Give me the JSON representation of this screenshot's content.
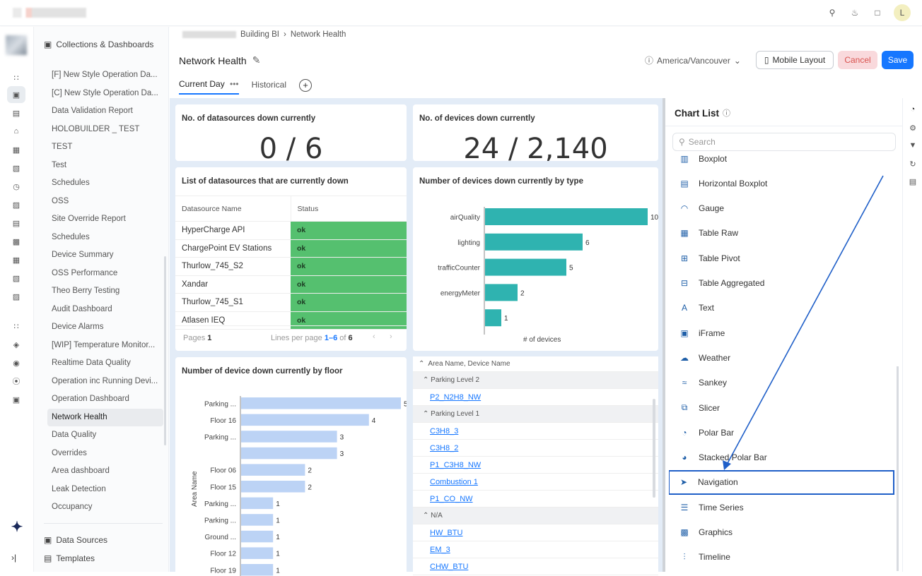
{
  "header": {
    "breadcrumb": [
      "Building BI",
      "Network Health"
    ],
    "title": "Network Health",
    "timezone": "America/Vancouver",
    "mobile_layout": "Mobile Layout",
    "cancel": "Cancel",
    "save": "Save",
    "tabs": [
      "Current Day",
      "Historical"
    ],
    "avatar_letter": "L"
  },
  "sidebar": {
    "section": "Collections & Dashboards",
    "items": [
      "[F] New Style Operation Da...",
      "[C] New Style Operation Da...",
      "Data Validation Report",
      "HOLOBUILDER _ TEST",
      "TEST",
      "Test",
      "Schedules",
      "OSS",
      "Site Override Report",
      "Schedules",
      "Device Summary",
      "OSS Performance",
      "Theo Berry Testing",
      "Audit Dashboard",
      "Device Alarms",
      "[WIP] Temperature Monitor...",
      "Realtime Data Quality",
      "Operation inc Running Devi...",
      "Operation Dashboard",
      "Network Health",
      "Data Quality",
      "Overrides",
      "Area dashboard",
      "Leak Detection",
      "Occupancy"
    ],
    "active_item": "Network Health",
    "footer": [
      "Data Sources",
      "Templates"
    ]
  },
  "cards": {
    "datasources_down": {
      "title": "No. of datasources down currently",
      "value": "0 / 6"
    },
    "devices_down": {
      "title": "No. of devices down currently",
      "value": "24 / 2,140"
    },
    "ds_list": {
      "title": "List of datasources that are currently down",
      "columns": [
        "Datasource Name",
        "Status"
      ],
      "rows": [
        [
          "HyperCharge API",
          "ok"
        ],
        [
          "ChargePoint EV Stations",
          "ok"
        ],
        [
          "Thurlow_745_S2",
          "ok"
        ],
        [
          "Xandar",
          "ok"
        ],
        [
          "Thurlow_745_S1",
          "ok"
        ],
        [
          "Atlasen IEQ",
          "ok"
        ]
      ],
      "pages_label": "Pages",
      "pages_value": "1",
      "lines_label": "Lines per page",
      "lines_range": "1–6",
      "of_label": "of",
      "total": "6"
    },
    "grid": {
      "header": "Area Name, Device Name",
      "rows": [
        {
          "type": "group",
          "text": "Parking Level 2"
        },
        {
          "type": "link",
          "text": "P2_N2H8_NW"
        },
        {
          "type": "group",
          "text": "Parking Level 1"
        },
        {
          "type": "link",
          "text": "C3H8_3"
        },
        {
          "type": "link",
          "text": "C3H8_2"
        },
        {
          "type": "link",
          "text": "P1_C3H8_NW"
        },
        {
          "type": "link",
          "text": "Combustion 1"
        },
        {
          "type": "link",
          "text": "P1_CO_NW"
        },
        {
          "type": "group",
          "text": "N/A"
        },
        {
          "type": "link",
          "text": "HW_BTU"
        },
        {
          "type": "link",
          "text": "EM_3"
        },
        {
          "type": "link",
          "text": "CHW_BTU"
        }
      ]
    }
  },
  "chart_data": [
    {
      "type": "bar",
      "orientation": "horizontal",
      "title": "Number of devices down currently by type",
      "categories": [
        "airQuality",
        "lighting",
        "trafficCounter",
        "energyMeter",
        ""
      ],
      "values": [
        10,
        6,
        5,
        2,
        1
      ],
      "xlabel": "# of devices",
      "ylabel": "",
      "color": "#2fb3b0"
    },
    {
      "type": "bar",
      "orientation": "horizontal",
      "title": "Number of device down currently by floor",
      "categories": [
        "Parking ...",
        "Floor 16",
        "Parking ...",
        "",
        "Floor 06",
        "Floor 15",
        "Parking ...",
        "Parking ...",
        "Ground ...",
        "Floor 12",
        "Floor 19"
      ],
      "values": [
        5,
        4,
        3,
        3,
        2,
        2,
        1,
        1,
        1,
        1,
        1
      ],
      "xlabel": "",
      "ylabel": "Area Name",
      "color": "#bcd3f5"
    }
  ],
  "panel": {
    "title": "Chart List",
    "search_placeholder": "Search",
    "items": [
      {
        "label": "Boxplot",
        "icon": "boxplot-icon",
        "glyph": "▥"
      },
      {
        "label": "Horizontal Boxplot",
        "icon": "horizontal-boxplot-icon",
        "glyph": "▤"
      },
      {
        "label": "Gauge",
        "icon": "gauge-icon",
        "glyph": "◠"
      },
      {
        "label": "Table Raw",
        "icon": "table-raw-icon",
        "glyph": "▦"
      },
      {
        "label": "Table Pivot",
        "icon": "table-pivot-icon",
        "glyph": "⊞"
      },
      {
        "label": "Table Aggregated",
        "icon": "table-aggregated-icon",
        "glyph": "⊟"
      },
      {
        "label": "Text",
        "icon": "text-icon",
        "glyph": "A"
      },
      {
        "label": "iFrame",
        "icon": "iframe-icon",
        "glyph": "▣"
      },
      {
        "label": "Weather",
        "icon": "weather-icon",
        "glyph": "☁"
      },
      {
        "label": "Sankey",
        "icon": "sankey-icon",
        "glyph": "≈"
      },
      {
        "label": "Slicer",
        "icon": "slicer-icon",
        "glyph": "⧉"
      },
      {
        "label": "Polar Bar",
        "icon": "polar-bar-icon",
        "glyph": "◔"
      },
      {
        "label": "Stacked Polar Bar",
        "icon": "stacked-polar-bar-icon",
        "glyph": "◕"
      },
      {
        "label": "Navigation",
        "icon": "navigation-icon",
        "glyph": "➤"
      },
      {
        "label": "Time Series",
        "icon": "time-series-icon",
        "glyph": "☰"
      },
      {
        "label": "Graphics",
        "icon": "graphics-icon",
        "glyph": "▩"
      },
      {
        "label": "Timeline",
        "icon": "timeline-icon",
        "glyph": "⫶"
      }
    ],
    "highlighted": "Navigation"
  },
  "colors": {
    "accent": "#1677ff",
    "ok": "#55c06f",
    "type_bar": "#2fb3b0",
    "floor_bar": "#bcd3f5",
    "annotation": "#1f5fc8"
  }
}
